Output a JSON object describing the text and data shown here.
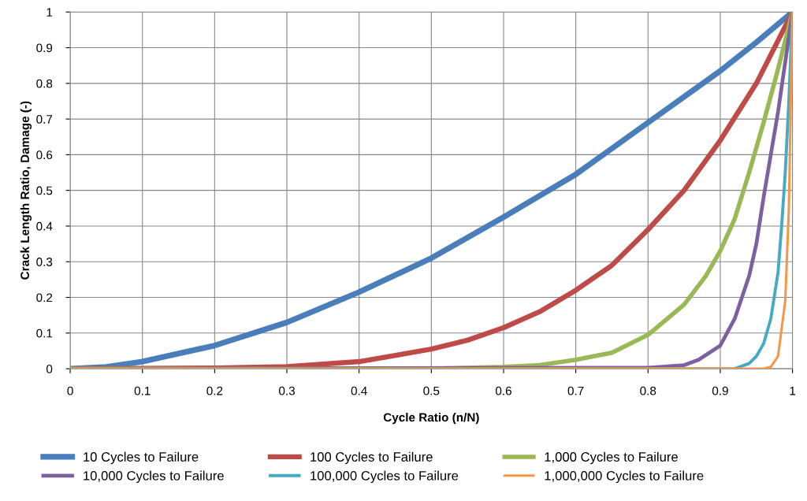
{
  "chart_data": {
    "type": "line",
    "xlabel": "Cycle Ratio (n/N)",
    "ylabel": "Crack Length Ratio, Damage (-)",
    "xlim": [
      0,
      1
    ],
    "ylim": [
      0,
      1
    ],
    "xticks": [
      0,
      0.1,
      0.2,
      0.3,
      0.4,
      0.5,
      0.6,
      0.7,
      0.8,
      0.9,
      1
    ],
    "yticks": [
      0,
      0.1,
      0.2,
      0.3,
      0.4,
      0.5,
      0.6,
      0.7,
      0.8,
      0.9,
      1
    ],
    "grid": true,
    "legend": "bottom",
    "marker": "none",
    "line_style": "solid",
    "series": [
      {
        "name": "10 Cycles to Failure",
        "color": "#4a7ebb",
        "x": [
          0,
          0.05,
          0.1,
          0.2,
          0.3,
          0.4,
          0.5,
          0.6,
          0.7,
          0.8,
          0.9,
          0.95,
          1
        ],
        "values": [
          0,
          0.005,
          0.02,
          0.065,
          0.13,
          0.215,
          0.31,
          0.425,
          0.545,
          0.69,
          0.835,
          0.915,
          1
        ]
      },
      {
        "name": "100 Cycles to Failure",
        "color": "#be4b48",
        "x": [
          0,
          0.2,
          0.3,
          0.4,
          0.5,
          0.55,
          0.6,
          0.65,
          0.7,
          0.75,
          0.8,
          0.85,
          0.9,
          0.95,
          1
        ],
        "values": [
          0,
          0.002,
          0.006,
          0.02,
          0.055,
          0.08,
          0.115,
          0.16,
          0.22,
          0.29,
          0.39,
          0.5,
          0.64,
          0.8,
          1
        ]
      },
      {
        "name": "1,000 Cycles to Failure",
        "color": "#98b954",
        "x": [
          0,
          0.5,
          0.6,
          0.65,
          0.7,
          0.75,
          0.8,
          0.85,
          0.88,
          0.9,
          0.92,
          0.94,
          0.96,
          0.98,
          1
        ],
        "values": [
          0,
          0,
          0.005,
          0.01,
          0.025,
          0.045,
          0.095,
          0.18,
          0.26,
          0.33,
          0.42,
          0.55,
          0.69,
          0.84,
          1
        ]
      },
      {
        "name": "10,000 Cycles to Failure",
        "color": "#7d60a0",
        "x": [
          0,
          0.8,
          0.85,
          0.87,
          0.9,
          0.92,
          0.94,
          0.95,
          0.96,
          0.97,
          0.98,
          0.99,
          1
        ],
        "values": [
          0,
          0.003,
          0.01,
          0.025,
          0.065,
          0.14,
          0.26,
          0.35,
          0.48,
          0.6,
          0.72,
          0.86,
          1
        ]
      },
      {
        "name": "100,000 Cycles to Failure",
        "color": "#46aac5",
        "x": [
          0,
          0.92,
          0.94,
          0.95,
          0.96,
          0.97,
          0.98,
          0.985,
          0.99,
          0.995,
          1
        ],
        "values": [
          0,
          0,
          0.015,
          0.035,
          0.07,
          0.14,
          0.27,
          0.4,
          0.55,
          0.75,
          1
        ]
      },
      {
        "name": "1,000,000 Cycles to Failure",
        "color": "#f79646",
        "x": [
          0,
          0.96,
          0.97,
          0.98,
          0.99,
          0.995,
          1
        ],
        "values": [
          0,
          0,
          0.005,
          0.035,
          0.19,
          0.45,
          1
        ]
      }
    ]
  }
}
